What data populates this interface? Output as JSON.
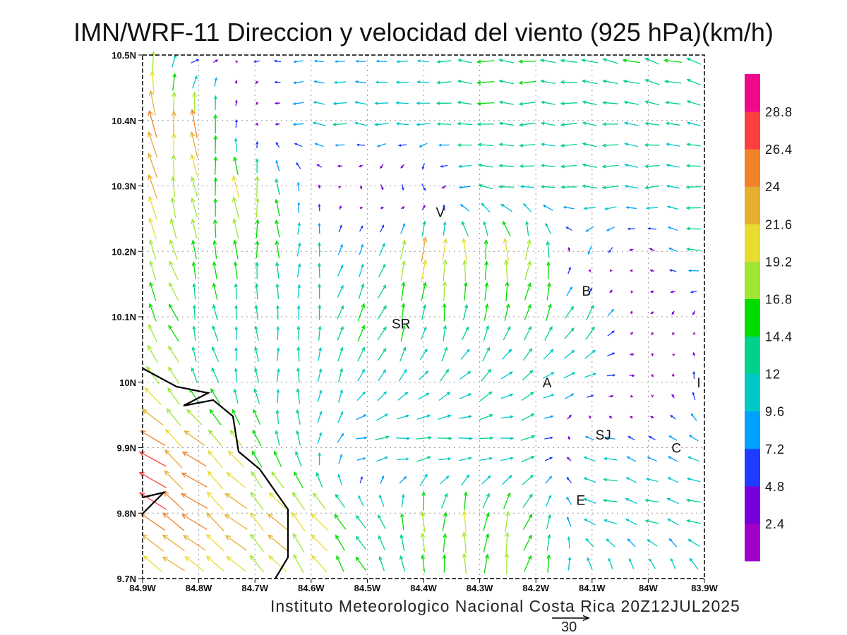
{
  "title": "IMN/WRF-11 Direccion y velocidad del viento (925 hPa)(km/h)",
  "footer": "Instituto Meteorologico Nacional Costa Rica  20Z12JUL2025",
  "reference_vector": {
    "label": "30",
    "speed_kmh": 30
  },
  "stations": [
    {
      "label": "V",
      "lon": -84.37,
      "lat": 10.26
    },
    {
      "label": "B",
      "lon": -84.11,
      "lat": 10.14
    },
    {
      "label": "SR",
      "lon": -84.44,
      "lat": 10.09
    },
    {
      "label": "A",
      "lon": -84.18,
      "lat": 10.0
    },
    {
      "label": "I",
      "lon": -83.91,
      "lat": 10.0
    },
    {
      "label": "SJ",
      "lon": -84.08,
      "lat": 9.92
    },
    {
      "label": "C",
      "lon": -83.95,
      "lat": 9.9
    },
    {
      "label": "E",
      "lon": -84.12,
      "lat": 9.82
    }
  ],
  "chart_data": {
    "type": "vector-field",
    "title": "IMN/WRF-11 Direccion y velocidad del viento (925 hPa)(km/h)",
    "units": "km/h",
    "x_ticks": [
      "84.9W",
      "84.8W",
      "84.7W",
      "84.6W",
      "84.5W",
      "84.4W",
      "84.3W",
      "84.2W",
      "84.1W",
      "84W",
      "83.9W"
    ],
    "y_ticks": [
      "10.5N",
      "10.4N",
      "10.3N",
      "10.2N",
      "10.1N",
      "10N",
      "9.9N",
      "9.8N",
      "9.7N"
    ],
    "xlim": [
      -84.9,
      -83.9
    ],
    "ylim": [
      9.7,
      10.5
    ],
    "grid": "dotted",
    "colorbar": {
      "labels": [
        "2.4",
        "4.8",
        "7.2",
        "9.6",
        "12",
        "14.4",
        "16.8",
        "19.2",
        "21.6",
        "24",
        "26.4",
        "28.8"
      ],
      "colors": [
        "#a000c8",
        "#7800dc",
        "#1e3cff",
        "#00a0ff",
        "#00c8c8",
        "#00d28c",
        "#00dc00",
        "#a0e632",
        "#e6dc32",
        "#e6ae2e",
        "#f0822a",
        "#fb3e3e",
        "#f0088a"
      ]
    },
    "grid_lons": [
      -84.9,
      -84.8,
      -84.7,
      -84.6,
      -84.5,
      -84.4,
      -84.3,
      -84.2,
      -84.1,
      -84.0,
      -83.9
    ],
    "grid_lats": [
      10.5,
      10.4,
      10.3,
      10.2,
      10.1,
      10.0,
      9.9,
      9.8,
      9.7
    ],
    "u": [
      [
        0,
        8,
        -5,
        -8,
        -8,
        -10,
        -14,
        -14,
        -14,
        -14,
        -14
      ],
      [
        -3,
        -2,
        2,
        -12,
        -12,
        -12,
        -14,
        -13,
        -13,
        -12,
        -12
      ],
      [
        -6,
        -2,
        -2,
        -1,
        1,
        2,
        -13,
        -12,
        -14,
        -12,
        -12
      ],
      [
        -8,
        -3,
        -1,
        1,
        4,
        4,
        -2,
        2,
        -3,
        -3,
        -13
      ],
      [
        -10,
        -2,
        -1,
        0,
        8,
        1,
        3,
        5,
        8,
        -2,
        -1
      ],
      [
        -12,
        -6,
        -1,
        1,
        6,
        8,
        10,
        10,
        10,
        2,
        -2
      ],
      [
        -20,
        -17,
        -8,
        0,
        12,
        14,
        12,
        12,
        -12,
        -6,
        -10
      ],
      [
        -22,
        -20,
        -15,
        -14,
        -8,
        0,
        2,
        8,
        -12,
        -12,
        -12
      ],
      [
        -18,
        -16,
        -14,
        -10,
        -6,
        -2,
        0,
        4,
        -1,
        -2,
        -4
      ]
    ],
    "v": [
      [
        20,
        0,
        0,
        0,
        0,
        0,
        1,
        1,
        3,
        4,
        4
      ],
      [
        22,
        25,
        -3,
        1,
        1,
        0,
        1,
        0,
        1,
        2,
        2
      ],
      [
        22,
        16,
        20,
        4,
        -4,
        -6,
        2,
        0,
        1,
        0,
        1
      ],
      [
        18,
        16,
        16,
        12,
        8,
        22,
        18,
        20,
        -8,
        2,
        3
      ],
      [
        16,
        13,
        12,
        12,
        14,
        14,
        14,
        14,
        12,
        -2,
        -4
      ],
      [
        16,
        13,
        12,
        12,
        10,
        8,
        8,
        6,
        2,
        -3,
        10
      ],
      [
        15,
        14,
        14,
        12,
        0,
        -1,
        -2,
        2,
        2,
        4,
        4
      ],
      [
        16,
        15,
        15,
        16,
        10,
        18,
        18,
        14,
        3,
        3,
        3
      ],
      [
        12,
        12,
        14,
        16,
        12,
        14,
        18,
        16,
        12,
        10,
        12
      ]
    ]
  }
}
